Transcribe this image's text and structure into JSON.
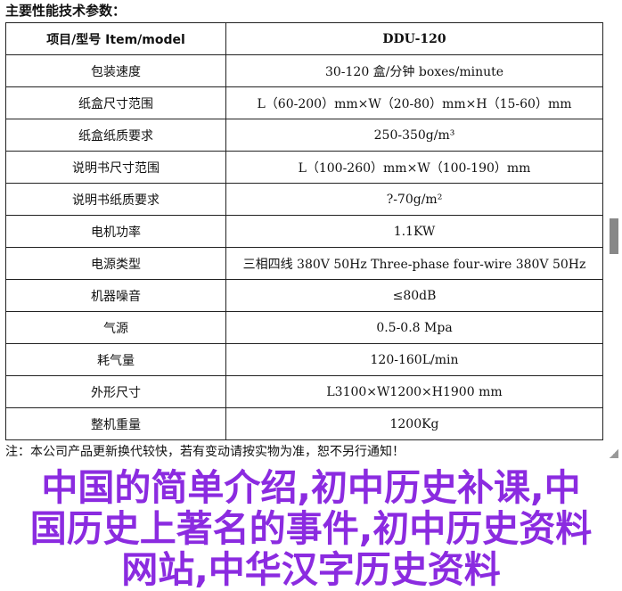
{
  "title": "主要性能技术参数：",
  "header": {
    "label": "项目/型号 Item/model",
    "value": "DDU-120"
  },
  "rows": [
    {
      "label": "包装速度",
      "value": "30-120 盒/分钟 boxes/minute"
    },
    {
      "label": "纸盒尺寸范围",
      "value": "L（60-200）mm×W（20-80）mm×H（15-60）mm"
    },
    {
      "label": "纸盒纸质要求",
      "value": "250-350g/m³"
    },
    {
      "label": "说明书尺寸范围",
      "value": "L（100-260）mm×W（100-190）mm"
    },
    {
      "label": "说明书纸质要求",
      "value": "?-70g/m²"
    },
    {
      "label": "电机功率",
      "value": "1.1KW"
    },
    {
      "label": "电源类型",
      "value": "三相四线 380V 50Hz Three-phase four-wire 380V 50Hz"
    },
    {
      "label": "机器噪音",
      "value": "≤80dB"
    },
    {
      "label": "气源",
      "value": "0.5-0.8 Mpa"
    },
    {
      "label": "耗气量",
      "value": "120-160L/min"
    },
    {
      "label": "外形尺寸",
      "value": "L3100×W1200×H1900 mm"
    },
    {
      "label": "整机重量",
      "value": "1200Kg"
    }
  ],
  "note": "注：本公司产品更新换代较快，若有变动请按实物为准，恕不另行通知！",
  "watermark": [
    "中国的简单介绍,初中历史补课,中",
    "国历史上著名的事件,初中历史资料",
    "网站,中华汉字历史资料"
  ],
  "colors": {
    "watermark": "#8b2be0"
  }
}
